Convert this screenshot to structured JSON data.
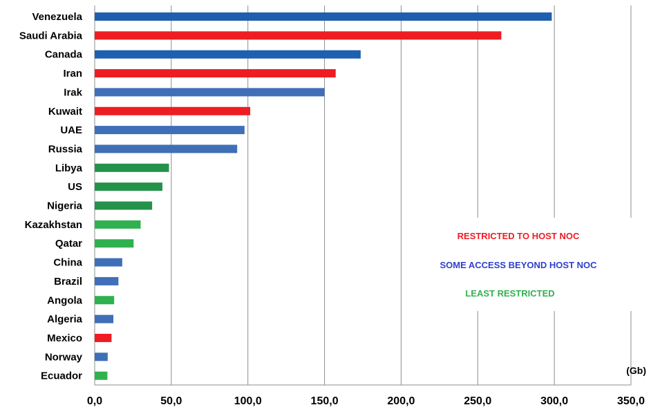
{
  "chart_data": {
    "type": "bar",
    "orientation": "horizontal",
    "categories": [
      "Venezuela",
      "Saudi Arabia",
      "Canada",
      "Iran",
      "Irak",
      "Kuwait",
      "UAE",
      "Russia",
      "Libya",
      "US",
      "Nigeria",
      "Kazakhstan",
      "Qatar",
      "China",
      "Brazil",
      "Angola",
      "Algeria",
      "Mexico",
      "Norway",
      "Ecuador"
    ],
    "values": [
      298.3,
      265.4,
      173.6,
      157.3,
      150.0,
      101.5,
      97.8,
      93.0,
      48.5,
      44.2,
      37.5,
      30.0,
      25.4,
      18.0,
      15.5,
      12.7,
      12.2,
      11.0,
      8.5,
      8.3
    ],
    "groups": [
      "some",
      "restricted",
      "some",
      "restricted",
      "some",
      "restricted",
      "some",
      "some",
      "least",
      "least",
      "least",
      "least",
      "least",
      "some",
      "some",
      "least",
      "some",
      "restricted",
      "some",
      "least"
    ],
    "unit_label": "(Gb)",
    "xlim": [
      0,
      350
    ],
    "x_ticks": [
      0,
      50,
      100,
      150,
      200,
      250,
      300,
      350
    ],
    "x_tick_labels": [
      "0,0",
      "50,0",
      "100,0",
      "150,0",
      "200,0",
      "250,0",
      "300,0",
      "350,0"
    ],
    "grid": true,
    "legend": {
      "placement": "center-right",
      "entries": [
        {
          "key": "restricted",
          "label": "RESTRICTED TO HOST NOC"
        },
        {
          "key": "some",
          "label": "SOME ACCESS BEYOND HOST NOC"
        },
        {
          "key": "least",
          "label": "LEAST RESTRICTED"
        }
      ]
    },
    "colors": {
      "restricted": "#ee1d23",
      "some": "#3f6fb7",
      "some_dark": "#1f5fb0",
      "least": "#2fb14f",
      "least_dark": "#24924a",
      "legend_restricted": "#ee1d23",
      "legend_some": "#2f3fcc",
      "legend_least": "#2fb14f",
      "grid": "#8c8c8c"
    }
  }
}
